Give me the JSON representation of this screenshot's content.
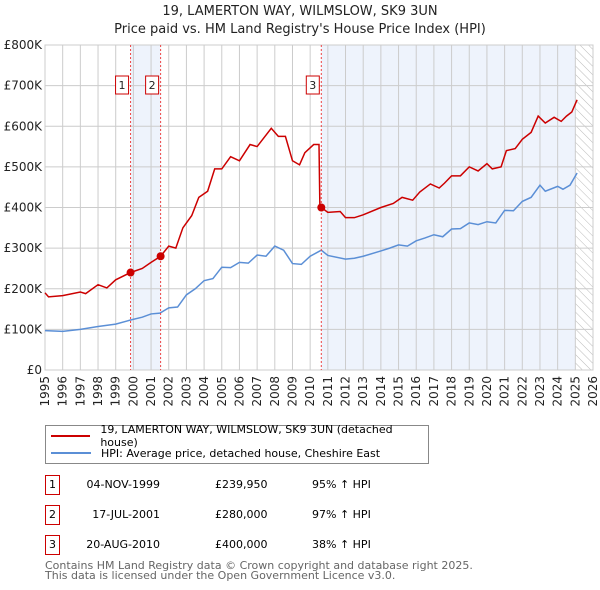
{
  "chart_data": {
    "type": "line",
    "title": "19, LAMERTON WAY, WILMSLOW, SK9 3UN",
    "subtitle": "Price paid vs. HM Land Registry's House Price Index (HPI)",
    "xlim": [
      1995,
      2026
    ],
    "ylim": [
      0,
      800000
    ],
    "x_ticks": [
      "1995",
      "1996",
      "1997",
      "1998",
      "1999",
      "2000",
      "2001",
      "2002",
      "2003",
      "2004",
      "2005",
      "2006",
      "2007",
      "2008",
      "2009",
      "2010",
      "2011",
      "2012",
      "2013",
      "2014",
      "2015",
      "2016",
      "2017",
      "2018",
      "2019",
      "2020",
      "2021",
      "2022",
      "2023",
      "2024",
      "2025",
      "2026"
    ],
    "y_ticks": [
      {
        "v": 0,
        "l": "£0"
      },
      {
        "v": 100000,
        "l": "£100K"
      },
      {
        "v": 200000,
        "l": "£200K"
      },
      {
        "v": 300000,
        "l": "£300K"
      },
      {
        "v": 400000,
        "l": "£400K"
      },
      {
        "v": 500000,
        "l": "£500K"
      },
      {
        "v": 600000,
        "l": "£600K"
      },
      {
        "v": 700000,
        "l": "£700K"
      },
      {
        "v": 800000,
        "l": "£800K"
      }
    ],
    "grid": true,
    "series": [
      {
        "name": "19, LAMERTON WAY, WILMSLOW, SK9 3UN (detached house)",
        "color": "#cc0000",
        "x": [
          1995,
          1995.2,
          1996,
          1997,
          1997.3,
          1998,
          1998.5,
          1999,
          1999.84,
          2000.5,
          2001,
          2001.54,
          2002,
          2002.4,
          2002.8,
          2003.3,
          2003.7,
          2004.2,
          2004.6,
          2005,
          2005.5,
          2006,
          2006.6,
          2007,
          2007.8,
          2008.2,
          2008.6,
          2009,
          2009.4,
          2009.7,
          2010.2,
          2010.5,
          2010.55,
          2010.63,
          2011,
          2011.7,
          2012,
          2012.5,
          2013,
          2014,
          2014.7,
          2015.2,
          2015.8,
          2016.2,
          2016.8,
          2017.3,
          2017.6,
          2018,
          2018.5,
          2019,
          2019.5,
          2020,
          2020.3,
          2020.8,
          2021.1,
          2021.6,
          2022,
          2022.5,
          2022.9,
          2023.3,
          2023.8,
          2024.2,
          2024.5,
          2024.8,
          2025.1
        ],
        "y": [
          190,
          180,
          183,
          192,
          188,
          210,
          202,
          222,
          240,
          250,
          265,
          280,
          305,
          300,
          350,
          380,
          425,
          440,
          495,
          495,
          525,
          515,
          555,
          550,
          595,
          575,
          575,
          515,
          505,
          535,
          555,
          555,
          400,
          400,
          388,
          390,
          375,
          375,
          382,
          400,
          410,
          425,
          418,
          438,
          458,
          448,
          460,
          478,
          478,
          500,
          490,
          508,
          495,
          500,
          540,
          545,
          568,
          585,
          625,
          608,
          622,
          612,
          625,
          635,
          665
        ]
      },
      {
        "name": "HPI: Average price, detached house, Cheshire East",
        "color": "#5b8fd6",
        "x": [
          1995,
          1996,
          1997,
          1998,
          1999,
          1999.84,
          2000.5,
          2001,
          2001.5,
          2002,
          2002.5,
          2003,
          2003.5,
          2004,
          2004.5,
          2005,
          2005.5,
          2006,
          2006.5,
          2007,
          2007.5,
          2008,
          2008.5,
          2009,
          2009.5,
          2010,
          2010.63,
          2011,
          2012,
          2012.5,
          2013,
          2014,
          2014.5,
          2015,
          2015.5,
          2016,
          2016.5,
          2017,
          2017.5,
          2018,
          2018.5,
          2019,
          2019.5,
          2020,
          2020.5,
          2021,
          2021.5,
          2022,
          2022.5,
          2023,
          2023.3,
          2024,
          2024.3,
          2024.7,
          2025.1
        ],
        "y": [
          97,
          95,
          100,
          107,
          113,
          123,
          130,
          138,
          140,
          153,
          155,
          185,
          200,
          220,
          225,
          253,
          252,
          265,
          263,
          283,
          280,
          305,
          295,
          262,
          260,
          280,
          295,
          282,
          273,
          275,
          280,
          293,
          300,
          308,
          305,
          318,
          325,
          333,
          328,
          347,
          348,
          362,
          358,
          365,
          362,
          393,
          392,
          415,
          425,
          455,
          440,
          452,
          445,
          455,
          485
        ]
      }
    ],
    "y_unit": "thousands GBP",
    "sales": [
      {
        "n": "1",
        "x": 1999.84,
        "y": 239950,
        "date": "04-NOV-1999",
        "price": "£239,950",
        "hpi": "95% ↑ HPI"
      },
      {
        "n": "2",
        "x": 2001.54,
        "y": 280000,
        "date": "17-JUL-2001",
        "price": "£280,000",
        "hpi": "97% ↑ HPI"
      },
      {
        "n": "3",
        "x": 2010.63,
        "y": 400000,
        "date": "20-AUG-2010",
        "price": "£400,000",
        "hpi": "38% ↑ HPI"
      }
    ],
    "shaded_ranges": [
      [
        1999.84,
        2001.54
      ],
      [
        2010.63,
        2025.0
      ]
    ],
    "hatched_from": 2025.0
  },
  "legend": [
    "19, LAMERTON WAY, WILMSLOW, SK9 3UN (detached house)",
    "HPI: Average price, detached house, Cheshire East"
  ],
  "footer": [
    "Contains HM Land Registry data © Crown copyright and database right 2025.",
    "This data is licensed under the Open Government Licence v3.0."
  ]
}
